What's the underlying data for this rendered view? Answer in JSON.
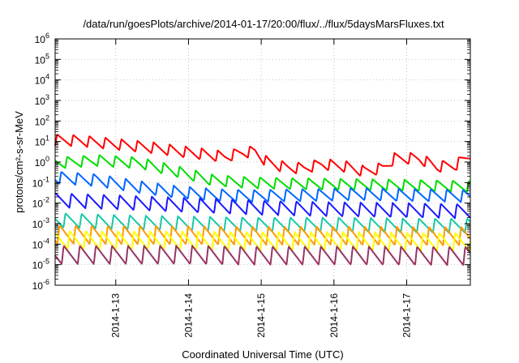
{
  "chart_data": {
    "type": "line",
    "title": "/data/run/goesPlots/archive/2014-01-17/20:00/flux/../flux/5daysMarsFluxes.txt",
    "xlabel": "Coordinated Universal Time (UTC)",
    "ylabel": "protons/cm²-s-sr-MeV",
    "yscale": "log",
    "ylim": [
      1e-06,
      1000000.0
    ],
    "xlim": [
      "2014-01-12 04:00",
      "2014-01-17 21:00"
    ],
    "grid": true,
    "legend": "none",
    "y_ticks": [
      {
        "base": "10",
        "exp": "-6"
      },
      {
        "base": "10",
        "exp": "-5"
      },
      {
        "base": "10",
        "exp": "-4"
      },
      {
        "base": "10",
        "exp": "-3"
      },
      {
        "base": "10",
        "exp": "-2"
      },
      {
        "base": "10",
        "exp": "-1"
      },
      {
        "base": "10",
        "exp": "0"
      },
      {
        "base": "10",
        "exp": "1"
      },
      {
        "base": "10",
        "exp": "2"
      },
      {
        "base": "10",
        "exp": "3"
      },
      {
        "base": "10",
        "exp": "4"
      },
      {
        "base": "10",
        "exp": "5"
      },
      {
        "base": "10",
        "exp": "6"
      }
    ],
    "x_ticks": [
      "2014-1-13",
      "2014-1-14",
      "2014-1-15",
      "2014-1-16",
      "2014-1-17"
    ],
    "series": [
      {
        "color": "#ff0000",
        "sawtooth": true,
        "x": [
          "2014-01-12 04:00",
          "2014-01-12 12:00",
          "2014-01-12 20:00",
          "2014-01-13 04:00",
          "2014-01-13 12:00",
          "2014-01-13 20:00",
          "2014-01-14 04:00",
          "2014-01-14 12:00",
          "2014-01-14 18:00",
          "2014-01-14 22:00",
          "2014-01-15 02:00",
          "2014-01-15 08:00",
          "2014-01-15 14:00",
          "2014-01-15 20:00",
          "2014-01-16 04:00",
          "2014-01-16 10:00",
          "2014-01-16 16:00",
          "2014-01-16 20:00",
          "2014-01-17 04:00",
          "2014-01-17 10:00",
          "2014-01-17 16:00",
          "2014-01-17 21:00"
        ],
        "y": [
          12,
          11,
          8.5,
          6.5,
          5,
          3.5,
          2.5,
          1.8,
          3,
          3.2,
          1,
          0.55,
          0.5,
          0.8,
          0.6,
          0.35,
          0.5,
          1.5,
          1.5,
          0.6,
          0.7,
          2.2
        ]
      },
      {
        "color": "#00dd00",
        "sawtooth": true,
        "x": [
          "2014-01-12 04:00",
          "2014-01-12 18:00",
          "2014-01-13 08:00",
          "2014-01-13 20:00",
          "2014-01-14 08:00",
          "2014-01-14 20:00",
          "2014-01-15 08:00",
          "2014-01-15 20:00",
          "2014-01-16 08:00",
          "2014-01-16 20:00",
          "2014-01-17 08:00",
          "2014-01-17 21:00"
        ],
        "y": [
          0.9,
          1.2,
          0.9,
          0.35,
          0.13,
          0.1,
          0.09,
          0.085,
          0.08,
          0.075,
          0.07,
          0.065
        ]
      },
      {
        "color": "#0066ff",
        "sawtooth": true,
        "x": [
          "2014-01-12 04:00",
          "2014-01-12 18:00",
          "2014-01-13 08:00",
          "2014-01-13 20:00",
          "2014-01-14 08:00",
          "2014-01-14 20:00",
          "2014-01-15 08:00",
          "2014-01-15 20:00",
          "2014-01-16 08:00",
          "2014-01-16 20:00",
          "2014-01-17 08:00",
          "2014-01-17 21:00"
        ],
        "y": [
          0.18,
          0.13,
          0.06,
          0.035,
          0.025,
          0.022,
          0.024,
          0.025,
          0.028,
          0.025,
          0.024,
          0.022
        ]
      },
      {
        "color": "#1a1aff",
        "sawtooth": true,
        "x": [
          "2014-01-12 04:00",
          "2014-01-13 00:00",
          "2014-01-14 00:00",
          "2014-01-15 00:00",
          "2014-01-16 00:00",
          "2014-01-17 00:00",
          "2014-01-17 21:00"
        ],
        "y": [
          0.014,
          0.011,
          0.008,
          0.006,
          0.005,
          0.0045,
          0.004
        ]
      },
      {
        "color": "#18c8a8",
        "sawtooth": true,
        "x": [
          "2014-01-12 04:00",
          "2014-01-13 00:00",
          "2014-01-14 00:00",
          "2014-01-15 00:00",
          "2014-01-16 00:00",
          "2014-01-17 00:00",
          "2014-01-17 21:00"
        ],
        "y": [
          0.0015,
          0.0012,
          0.001,
          0.0009,
          0.0009,
          0.0008,
          0.0008
        ]
      },
      {
        "color": "#ff9900",
        "sawtooth": true,
        "x": [
          "2014-01-12 04:00",
          "2014-01-13 00:00",
          "2014-01-14 00:00",
          "2014-01-15 00:00",
          "2014-01-16 00:00",
          "2014-01-17 00:00",
          "2014-01-17 21:00"
        ],
        "y": [
          0.0003,
          0.00028,
          0.00027,
          0.00026,
          0.00026,
          0.00025,
          0.00025
        ]
      },
      {
        "color": "#ffff00",
        "sawtooth": true,
        "x": [
          "2014-01-12 04:00",
          "2014-01-13 00:00",
          "2014-01-14 00:00",
          "2014-01-15 00:00",
          "2014-01-16 00:00",
          "2014-01-17 00:00",
          "2014-01-17 21:00"
        ],
        "y": [
          0.00016,
          0.00015,
          0.00015,
          0.00014,
          0.00014,
          0.00013,
          0.00013
        ]
      },
      {
        "color": "#993366",
        "sawtooth": true,
        "x": [
          "2014-01-12 04:00",
          "2014-01-13 00:00",
          "2014-01-14 00:00",
          "2014-01-15 00:00",
          "2014-01-16 00:00",
          "2014-01-17 00:00",
          "2014-01-17 21:00"
        ],
        "y": [
          3e-05,
          3e-05,
          3e-05,
          2.8e-05,
          2.8e-05,
          2.7e-05,
          2.7e-05
        ]
      }
    ]
  }
}
